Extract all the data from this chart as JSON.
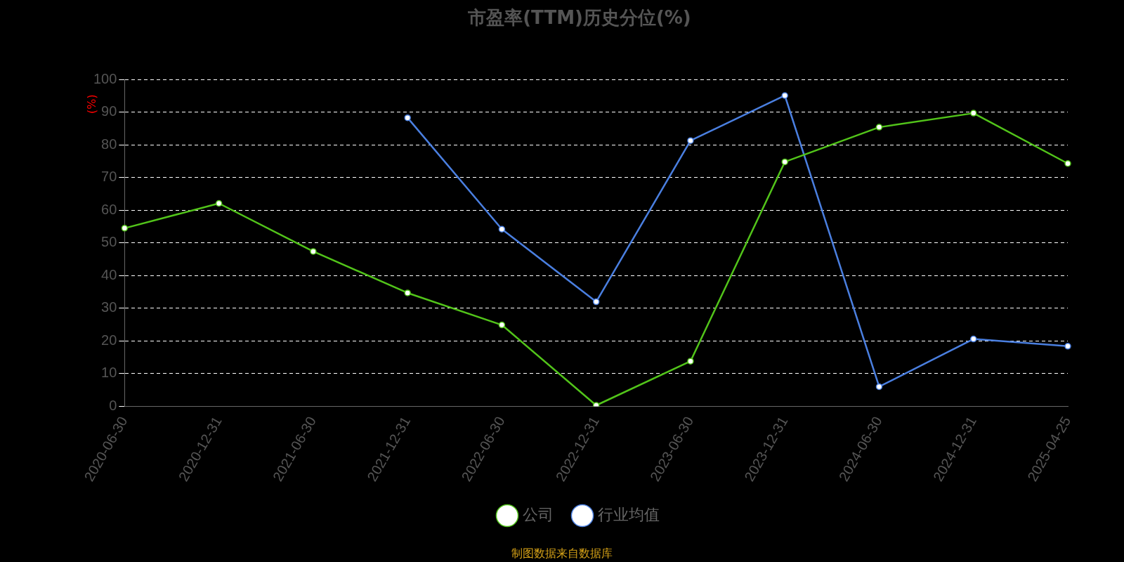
{
  "chart_data": {
    "type": "line",
    "title": "市盈率(TTM)历史分位(%)",
    "ylabel": "(%)",
    "categories": [
      "2020-06-30",
      "2020-12-31",
      "2021-06-30",
      "2021-12-31",
      "2022-06-30",
      "2022-12-31",
      "2023-06-30",
      "2023-12-31",
      "2024-06-30",
      "2024-12-31",
      "2025-04-25"
    ],
    "series": [
      {
        "name": "公司",
        "color": "#52c41a",
        "values": [
          54.5,
          62.1,
          47.4,
          34.7,
          24.9,
          0.3,
          13.8,
          74.8,
          85.4,
          89.7,
          74.3
        ]
      },
      {
        "name": "行业均值",
        "color": "#4a7fe0",
        "values": [
          null,
          null,
          null,
          88.3,
          54.2,
          32.0,
          81.3,
          95.1,
          6.0,
          20.6,
          18.4
        ]
      }
    ],
    "ylim": [
      0,
      100
    ],
    "yticks": [
      0,
      10,
      20,
      30,
      40,
      50,
      60,
      70,
      80,
      90,
      100
    ],
    "grid": "y",
    "legend": "bottom",
    "marker": "circle",
    "line_style": "solid",
    "annotations": [
      "制图数据来自数据库"
    ]
  }
}
